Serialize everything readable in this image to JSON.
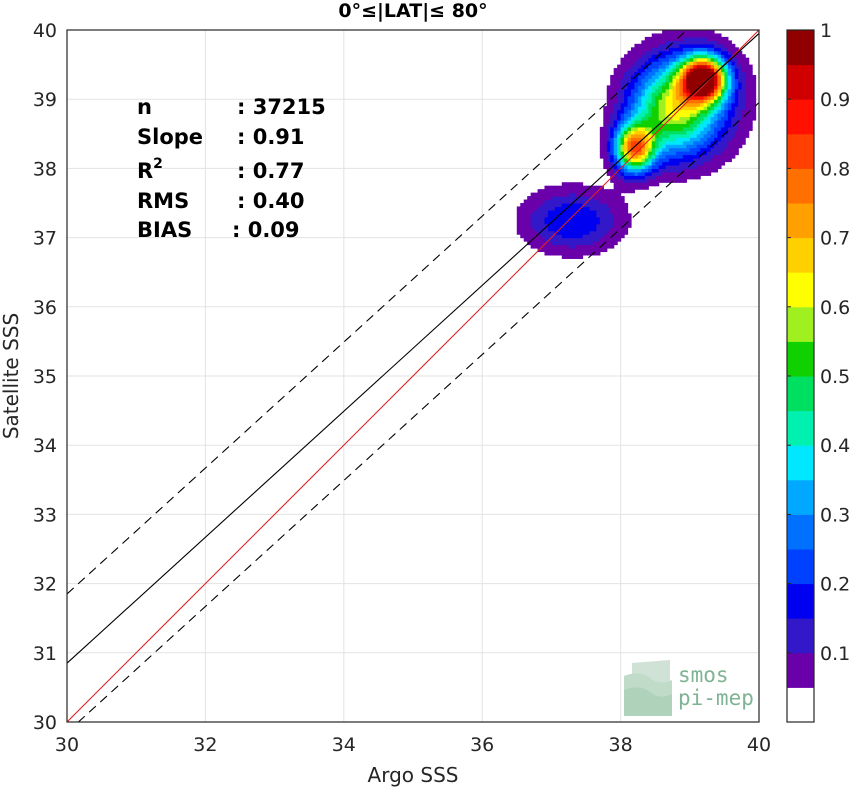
{
  "chart_data": {
    "type": "heatmap",
    "subtype": "density-contour-scatter",
    "title": "0°≤|LAT|≤ 80°",
    "xlabel": "Argo SSS",
    "ylabel": "Satellite SSS",
    "xlim": [
      30,
      40
    ],
    "ylim": [
      30,
      40
    ],
    "xticks": [
      30,
      32,
      34,
      36,
      38,
      40
    ],
    "yticks": [
      30,
      31,
      32,
      33,
      34,
      35,
      36,
      37,
      38,
      39,
      40
    ],
    "grid": true,
    "stats": [
      {
        "label": "n",
        "value": ": 37215"
      },
      {
        "label": "Slope",
        "value": ": 0.91"
      },
      {
        "label": "R",
        "sup": "2",
        "value": ": 0.77"
      },
      {
        "label": "RMS",
        "value": ": 0.40"
      },
      {
        "label": "BIAS",
        "value": ": 0.09"
      }
    ],
    "lines": [
      {
        "name": "one-to-one",
        "color": "#e02020",
        "points": [
          [
            30,
            30
          ],
          [
            40,
            40
          ]
        ]
      },
      {
        "name": "regression",
        "color": "#000000",
        "points": [
          [
            30,
            30.85
          ],
          [
            40,
            39.95
          ]
        ]
      },
      {
        "name": "upper-bound",
        "color": "#000000",
        "dashed": true,
        "points": [
          [
            30,
            31.85
          ],
          [
            40,
            40.95
          ]
        ]
      },
      {
        "name": "lower-bound",
        "color": "#000000",
        "dashed": true,
        "points": [
          [
            30,
            29.85
          ],
          [
            40,
            38.95
          ]
        ]
      }
    ],
    "density_levels": [
      0.05,
      0.1,
      0.15,
      0.2,
      0.25,
      0.3,
      0.35,
      0.4,
      0.45,
      0.5,
      0.55,
      0.6,
      0.65,
      0.7,
      0.75,
      0.8,
      0.85,
      0.9,
      0.95
    ],
    "density_peaks": [
      {
        "x": 39.2,
        "y": 39.3,
        "sx": 0.22,
        "sy": 0.22,
        "amp": 0.98
      },
      {
        "x": 38.2,
        "y": 38.3,
        "sx": 0.2,
        "sy": 0.24,
        "amp": 0.72
      },
      {
        "x": 38.75,
        "y": 38.85,
        "sx": 0.42,
        "sy": 0.45,
        "amp": 0.45
      },
      {
        "x": 37.3,
        "y": 37.25,
        "sx": 0.5,
        "sy": 0.32,
        "amp": 0.2
      },
      {
        "x": 39.0,
        "y": 39.0,
        "sx": 0.55,
        "sy": 0.55,
        "amp": 0.2
      }
    ],
    "colorbar": {
      "ticks": [
        "0.1",
        "0.2",
        "0.3",
        "0.4",
        "0.5",
        "0.6",
        "0.7",
        "0.8",
        "0.9",
        "1"
      ],
      "colors": [
        "#ffffff",
        "#6a00aa",
        "#3218c8",
        "#0000f0",
        "#0040ff",
        "#0070ff",
        "#00a8ff",
        "#00e8ff",
        "#00f0b0",
        "#00e060",
        "#10d000",
        "#a0f020",
        "#ffff00",
        "#ffd000",
        "#ffa000",
        "#ff7000",
        "#ff4000",
        "#ff1000",
        "#d00000",
        "#900000"
      ]
    },
    "logo": [
      "smos",
      "pi-mep"
    ]
  }
}
